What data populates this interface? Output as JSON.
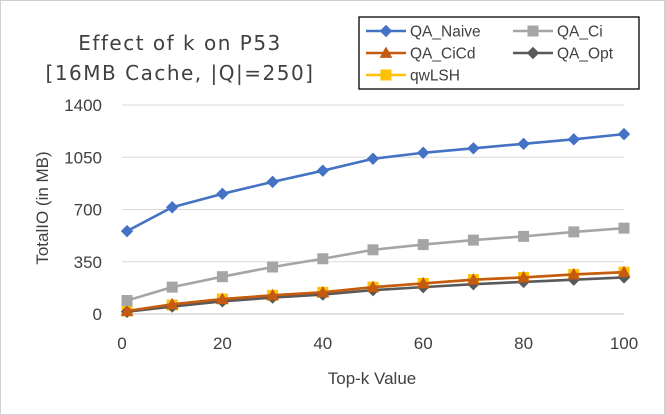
{
  "chart_data": {
    "type": "line",
    "title_lines": [
      "Effect of k on P53",
      "[16MB Cache, |Q|=250]"
    ],
    "xlabel": "Top-k Value",
    "ylabel": "TotalIO (in MB)",
    "xlim": [
      0,
      100
    ],
    "ylim": [
      0,
      1400
    ],
    "xticks": [
      0,
      20,
      40,
      60,
      80,
      100
    ],
    "yticks": [
      0,
      350,
      700,
      1050,
      1400
    ],
    "grid": "horizontal",
    "legend_position": "top-right",
    "x": [
      1,
      10,
      20,
      30,
      40,
      50,
      60,
      70,
      80,
      90,
      100
    ],
    "series": [
      {
        "name": "QA_Naive",
        "color": "#4472C4",
        "marker": "diamond",
        "values": [
          555,
          715,
          805,
          885,
          960,
          1040,
          1080,
          1110,
          1140,
          1170,
          1205
        ]
      },
      {
        "name": "QA_Ci",
        "color": "#A5A5A5",
        "marker": "square",
        "values": [
          90,
          180,
          250,
          315,
          370,
          430,
          465,
          495,
          520,
          550,
          575
        ]
      },
      {
        "name": "QA_CiCd",
        "color": "#C55A11",
        "marker": "triangle",
        "values": [
          20,
          65,
          100,
          125,
          145,
          180,
          205,
          230,
          245,
          265,
          280
        ]
      },
      {
        "name": "QA_Opt",
        "color": "#595959",
        "marker": "diamond",
        "values": [
          15,
          50,
          85,
          110,
          130,
          160,
          180,
          200,
          215,
          230,
          245
        ]
      },
      {
        "name": "qwLSH",
        "color": "#FFC000",
        "marker": "square",
        "values": [
          20,
          60,
          100,
          125,
          145,
          180,
          205,
          230,
          245,
          265,
          280
        ]
      }
    ]
  }
}
